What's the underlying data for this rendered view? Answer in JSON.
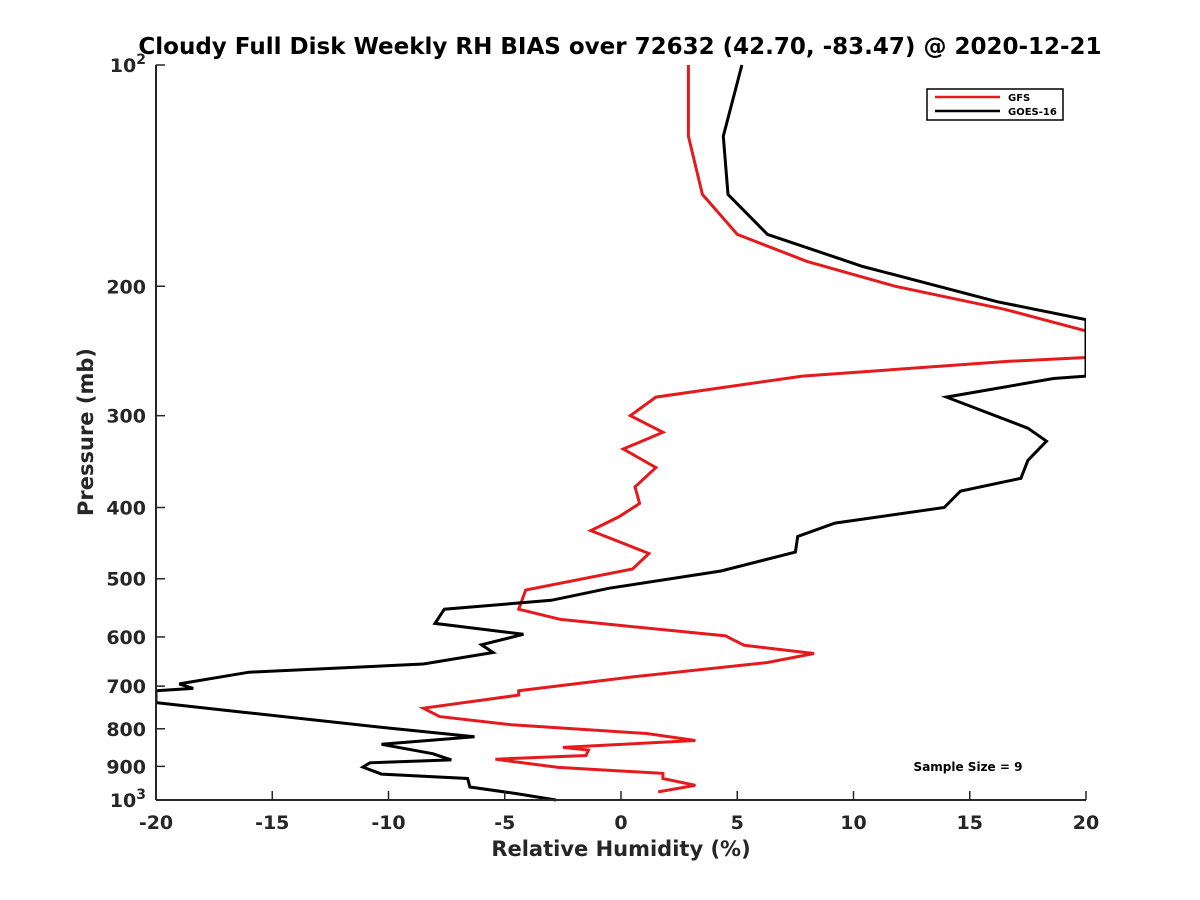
{
  "chart_data": {
    "type": "line",
    "title": "Cloudy Full Disk Weekly RH BIAS over 72632 (42.70, -83.47) @ 2020-12-21",
    "xlabel": "Relative Humidity (%)",
    "ylabel": "Pressure (mb)",
    "xlim": [
      -20,
      20
    ],
    "ylim": [
      100,
      1000
    ],
    "y_scale": "log",
    "y_reversed": true,
    "grid": false,
    "legend_position": "top-right",
    "x_ticks": [
      "-20",
      "-15",
      "-10",
      "-5",
      "0",
      "5",
      "10",
      "15",
      "20"
    ],
    "y_ticks": [
      {
        "value": 100,
        "base": "10",
        "exp": "2"
      },
      {
        "value": 200,
        "label": "200"
      },
      {
        "value": 300,
        "label": "300"
      },
      {
        "value": 400,
        "label": "400"
      },
      {
        "value": 500,
        "label": "500"
      },
      {
        "value": 600,
        "label": "600"
      },
      {
        "value": 700,
        "label": "700"
      },
      {
        "value": 800,
        "label": "800"
      },
      {
        "value": 900,
        "label": "900"
      },
      {
        "value": 1000,
        "base": "10",
        "exp": "3"
      }
    ],
    "series": [
      {
        "name": "GFS",
        "color": "#e41a1c",
        "points": [
          [
            2.9,
            100
          ],
          [
            2.9,
            125
          ],
          [
            3.5,
            150
          ],
          [
            5.0,
            170
          ],
          [
            8.0,
            185
          ],
          [
            11.8,
            200
          ],
          [
            16.5,
            215
          ],
          [
            20,
            230
          ],
          [
            20,
            250
          ],
          [
            16.7,
            253
          ],
          [
            7.8,
            265
          ],
          [
            1.5,
            283
          ],
          [
            0.4,
            300
          ],
          [
            1.8,
            316
          ],
          [
            0.1,
            333
          ],
          [
            1.5,
            353
          ],
          [
            0.6,
            375
          ],
          [
            0.8,
            395
          ],
          [
            -0.1,
            412
          ],
          [
            -1.3,
            430
          ],
          [
            1.2,
            462
          ],
          [
            0.5,
            485
          ],
          [
            -4.1,
            518
          ],
          [
            -4.4,
            550
          ],
          [
            -2.6,
            568
          ],
          [
            4.5,
            598
          ],
          [
            5.3,
            616
          ],
          [
            8.3,
            632
          ],
          [
            6.3,
            650
          ],
          [
            0.5,
            680
          ],
          [
            -4.4,
            710
          ],
          [
            -4.4,
            720
          ],
          [
            -8.5,
            750
          ],
          [
            -7.8,
            770
          ],
          [
            -4.7,
            790
          ],
          [
            1.1,
            812
          ],
          [
            3.2,
            830
          ],
          [
            -2.5,
            848
          ],
          [
            -1.4,
            855
          ],
          [
            -1.5,
            870
          ],
          [
            -5.4,
            880
          ],
          [
            -2.7,
            903
          ],
          [
            1.8,
            920
          ],
          [
            1.8,
            935
          ],
          [
            3.2,
            955
          ],
          [
            1.6,
            975
          ]
        ]
      },
      {
        "name": "GOES-16",
        "color": "#000000",
        "points": [
          [
            5.2,
            100
          ],
          [
            4.4,
            125
          ],
          [
            4.6,
            150
          ],
          [
            6.3,
            170
          ],
          [
            10.4,
            188
          ],
          [
            16.2,
            210
          ],
          [
            20,
            222
          ],
          [
            20,
            265
          ],
          [
            18.6,
            267
          ],
          [
            14.0,
            283
          ],
          [
            17.5,
            312
          ],
          [
            18.3,
            325
          ],
          [
            17.5,
            345
          ],
          [
            17.2,
            365
          ],
          [
            14.6,
            380
          ],
          [
            13.9,
            400
          ],
          [
            9.2,
            420
          ],
          [
            7.6,
            438
          ],
          [
            7.5,
            460
          ],
          [
            4.3,
            488
          ],
          [
            -0.5,
            515
          ],
          [
            -3.0,
            535
          ],
          [
            -7.6,
            550
          ],
          [
            -8.0,
            575
          ],
          [
            -4.2,
            595
          ],
          [
            -6.0,
            615
          ],
          [
            -5.5,
            630
          ],
          [
            -8.5,
            653
          ],
          [
            -16.0,
            670
          ],
          [
            -19.0,
            695
          ],
          [
            -18.4,
            705
          ],
          [
            -20.0,
            710
          ],
          [
            -20.0,
            737
          ],
          [
            -16.5,
            758
          ],
          [
            -9.7,
            800
          ],
          [
            -6.3,
            820
          ],
          [
            -10.3,
            840
          ],
          [
            -8.1,
            865
          ],
          [
            -7.3,
            882
          ],
          [
            -10.8,
            890
          ],
          [
            -11.1,
            902
          ],
          [
            -10.3,
            922
          ],
          [
            -6.6,
            935
          ],
          [
            -6.5,
            960
          ],
          [
            -4.5,
            980
          ],
          [
            -2.8,
            1000
          ]
        ]
      }
    ],
    "annotations": [
      {
        "text": "Sample Size = 9",
        "x": 15,
        "y": 915
      }
    ]
  }
}
